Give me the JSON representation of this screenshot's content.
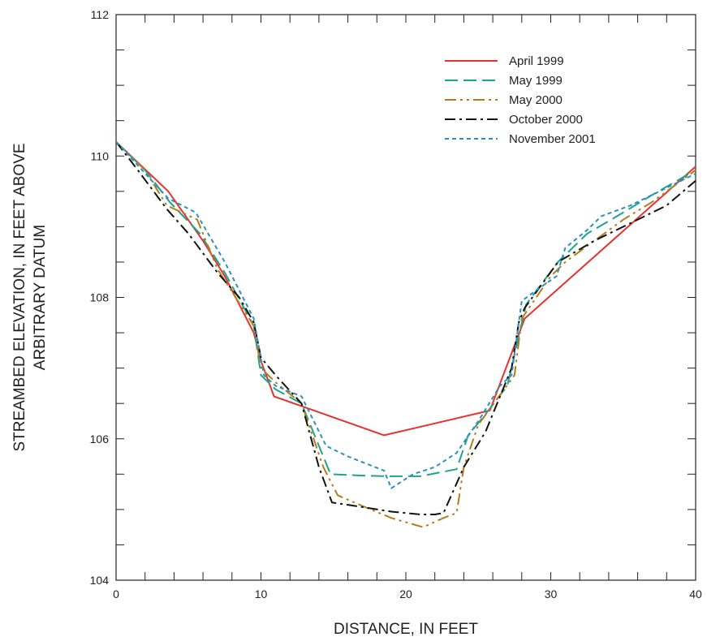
{
  "chart_data": {
    "type": "line",
    "title": "",
    "xlabel": "DISTANCE, IN FEET",
    "ylabel_lines": [
      "STREAMBED ELEVATION, IN FEET ABOVE",
      "ARBITRARY DATUM"
    ],
    "xlim": [
      0,
      40
    ],
    "ylim": [
      104,
      112
    ],
    "x_ticks": [
      0,
      10,
      20,
      30,
      40
    ],
    "y_ticks": [
      104,
      106,
      108,
      110,
      112
    ],
    "x_minor_step": 2,
    "y_minor_step": 0.5,
    "grid": false,
    "legend_position": "top-right",
    "series": [
      {
        "name": "April 1999",
        "color": "#e8322f",
        "dash": "solid",
        "points": [
          [
            0,
            110.2
          ],
          [
            3.6,
            109.5
          ],
          [
            6,
            108.8
          ],
          [
            7.5,
            108.3
          ],
          [
            9.5,
            107.5
          ],
          [
            10,
            107.1
          ],
          [
            10.9,
            106.6
          ],
          [
            18.5,
            106.05
          ],
          [
            25.8,
            106.4
          ],
          [
            28.2,
            107.7
          ],
          [
            40,
            109.85
          ]
        ]
      },
      {
        "name": "May 1999",
        "color": "#1aa68a",
        "dash": "long-dash",
        "points": [
          [
            0,
            110.2
          ],
          [
            2,
            109.8
          ],
          [
            3.7,
            109.35
          ],
          [
            5.8,
            108.9
          ],
          [
            7.5,
            108.35
          ],
          [
            9.5,
            107.6
          ],
          [
            10,
            106.9
          ],
          [
            11,
            106.7
          ],
          [
            12.8,
            106.5
          ],
          [
            14.8,
            105.5
          ],
          [
            17,
            105.48
          ],
          [
            19,
            105.47
          ],
          [
            21,
            105.47
          ],
          [
            23.5,
            105.57
          ],
          [
            24.3,
            106.05
          ],
          [
            25.5,
            106.35
          ],
          [
            27,
            106.75
          ],
          [
            28.3,
            107.9
          ],
          [
            30.5,
            108.5
          ],
          [
            32.5,
            108.9
          ],
          [
            35,
            109.2
          ],
          [
            37,
            109.45
          ],
          [
            40,
            109.8
          ]
        ]
      },
      {
        "name": "May 2000",
        "color": "#b07d1e",
        "dash": "dash-dot-dot",
        "points": [
          [
            0,
            110.2
          ],
          [
            2,
            109.8
          ],
          [
            3.5,
            109.3
          ],
          [
            5.6,
            109.1
          ],
          [
            7,
            108.4
          ],
          [
            9.5,
            107.6
          ],
          [
            10,
            107.0
          ],
          [
            11,
            106.8
          ],
          [
            12.8,
            106.5
          ],
          [
            14.3,
            105.6
          ],
          [
            15.3,
            105.2
          ],
          [
            17,
            105.05
          ],
          [
            19,
            104.88
          ],
          [
            21.2,
            104.75
          ],
          [
            22.6,
            104.88
          ],
          [
            23.5,
            104.95
          ],
          [
            24,
            105.6
          ],
          [
            25,
            106.2
          ],
          [
            27.5,
            106.9
          ],
          [
            28,
            107.7
          ],
          [
            30,
            108.3
          ],
          [
            31,
            108.5
          ],
          [
            33,
            108.8
          ],
          [
            35,
            109.1
          ],
          [
            37,
            109.35
          ],
          [
            40,
            109.8
          ]
        ]
      },
      {
        "name": "October 2000",
        "color": "#111111",
        "dash": "dash-dot",
        "points": [
          [
            0,
            110.2
          ],
          [
            1.5,
            109.8
          ],
          [
            3.5,
            109.25
          ],
          [
            5,
            108.9
          ],
          [
            7,
            108.35
          ],
          [
            8.5,
            108.0
          ],
          [
            9.5,
            107.65
          ],
          [
            10,
            107.15
          ],
          [
            11,
            106.9
          ],
          [
            12.8,
            106.5
          ],
          [
            14,
            105.6
          ],
          [
            14.9,
            105.1
          ],
          [
            16.5,
            105.05
          ],
          [
            19,
            104.97
          ],
          [
            21,
            104.93
          ],
          [
            22,
            104.93
          ],
          [
            22.6,
            104.95
          ],
          [
            24,
            105.6
          ],
          [
            25.5,
            106.1
          ],
          [
            27.3,
            107.0
          ],
          [
            27.8,
            107.65
          ],
          [
            28.2,
            107.85
          ],
          [
            30.5,
            108.5
          ],
          [
            33,
            108.8
          ],
          [
            35,
            109.0
          ],
          [
            38,
            109.3
          ],
          [
            40,
            109.65
          ]
        ]
      },
      {
        "name": "November 2001",
        "color": "#2a8fc4",
        "dash": "dotted",
        "points": [
          [
            0,
            110.2
          ],
          [
            1.8,
            109.8
          ],
          [
            3.6,
            109.4
          ],
          [
            5.5,
            109.2
          ],
          [
            7.5,
            108.5
          ],
          [
            9.5,
            107.7
          ],
          [
            10.2,
            106.9
          ],
          [
            11,
            106.75
          ],
          [
            12.8,
            106.6
          ],
          [
            14.5,
            105.9
          ],
          [
            16,
            105.75
          ],
          [
            18.5,
            105.55
          ],
          [
            19,
            105.3
          ],
          [
            20.5,
            105.5
          ],
          [
            22,
            105.6
          ],
          [
            23.5,
            105.8
          ],
          [
            25,
            106.25
          ],
          [
            26.5,
            106.75
          ],
          [
            27.3,
            106.9
          ],
          [
            27.8,
            107.65
          ],
          [
            28,
            107.95
          ],
          [
            29,
            108.1
          ],
          [
            30.4,
            108.3
          ],
          [
            31,
            108.7
          ],
          [
            32.5,
            108.95
          ],
          [
            33.5,
            109.15
          ],
          [
            35.5,
            109.3
          ],
          [
            37,
            109.45
          ],
          [
            38.5,
            109.6
          ],
          [
            40,
            109.75
          ]
        ]
      }
    ]
  }
}
